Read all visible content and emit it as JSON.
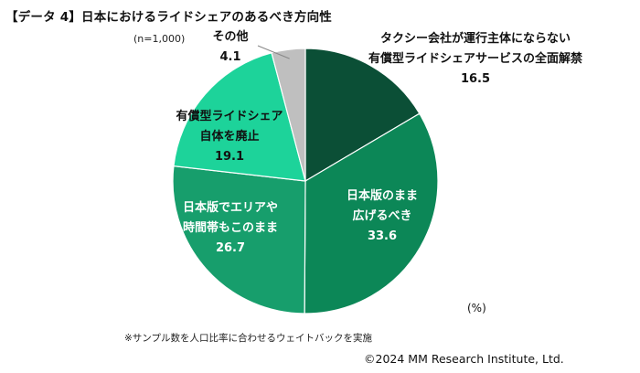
{
  "title": "【データ 4】日本におけるライドシェアのあるべき方向性",
  "sample_size": "(n=1,000)",
  "unit": "(%)",
  "note": "※サンプル数を人口比率に合わせるウェイトバックを実施",
  "copyright": "©2024 MM Research Institute, Ltd.",
  "chart_data": {
    "type": "pie",
    "start": "12 o'clock",
    "direction": "clockwise",
    "slices": [
      {
        "label_lines": [
          "タクシー会社が運行主体にならない",
          "有償型ライドシェアサービスの全面解禁"
        ],
        "value": 16.5,
        "display": "16.5",
        "color": "#0b4f36"
      },
      {
        "label_lines": [
          "日本版のまま",
          "広げるべき"
        ],
        "value": 33.6,
        "display": "33.6",
        "color": "#0c8757"
      },
      {
        "label_lines": [
          "日本版でエリアや",
          "時間帯もこのまま"
        ],
        "value": 26.7,
        "display": "26.7",
        "color": "#179e6c"
      },
      {
        "label_lines": [
          "有償型ライドシェア",
          "自体を廃止"
        ],
        "value": 19.1,
        "display": "19.1",
        "color": "#1dd39a"
      },
      {
        "label_lines": [
          "その他"
        ],
        "value": 4.1,
        "display": "4.1",
        "color": "#bfbfbf"
      }
    ]
  }
}
